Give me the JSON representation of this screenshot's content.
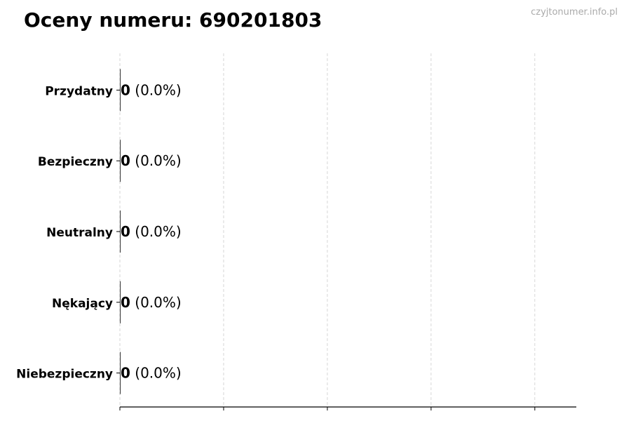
{
  "chart_data": {
    "type": "bar",
    "orientation": "horizontal",
    "title": "Oceny numeru: 690201803",
    "watermark": "czyjtonumer.info.pl",
    "categories": [
      "Przydatny",
      "Bezpieczny",
      "Neutralny",
      "Nękający",
      "Niebezpieczny"
    ],
    "values": [
      0,
      0,
      0,
      0,
      0
    ],
    "value_labels": [
      "(0.0%)",
      "(0.0%)",
      "(0.0%)",
      "(0.0%)",
      "(0.0%)"
    ],
    "xlim": [
      0,
      4.4
    ],
    "xticks": [
      0,
      1,
      2,
      3,
      4
    ],
    "xtick_labels_shown": false,
    "grid": "x, dashed",
    "bar_color": "#333333",
    "xlabel": "",
    "ylabel": ""
  }
}
